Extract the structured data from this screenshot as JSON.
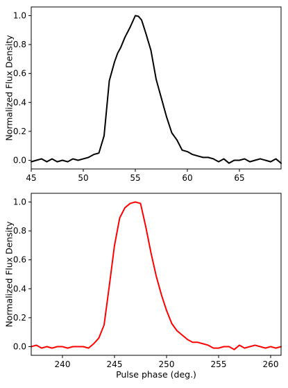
{
  "chart_data": [
    {
      "type": "line",
      "xlabel": "",
      "ylabel": "Normalized Flux Density",
      "xlim": [
        45,
        69
      ],
      "ylim": [
        -0.06,
        1.06
      ],
      "xticks": [
        "45",
        "50",
        "55",
        "60",
        "65"
      ],
      "xtick_values": [
        45,
        50,
        55,
        60,
        65
      ],
      "yticks": [
        "0.0",
        "0.2",
        "0.4",
        "0.6",
        "0.8",
        "1.0"
      ],
      "ytick_values": [
        0.0,
        0.2,
        0.4,
        0.6,
        0.8,
        1.0
      ],
      "grid": false,
      "series": [
        {
          "color": "#000000",
          "x": [
            45.0,
            45.5,
            46.0,
            46.5,
            47.0,
            47.5,
            48.0,
            48.5,
            49.0,
            49.5,
            50.0,
            50.5,
            51.0,
            51.5,
            52.0,
            52.5,
            53.0,
            53.3,
            53.6,
            54.0,
            54.5,
            55.0,
            55.3,
            55.6,
            56.0,
            56.5,
            57.0,
            57.5,
            58.0,
            58.5,
            59.0,
            59.5,
            60.0,
            60.5,
            61.0,
            61.5,
            62.0,
            62.5,
            63.0,
            63.5,
            64.0,
            64.5,
            65.0,
            65.5,
            66.0,
            66.5,
            67.0,
            67.5,
            68.0,
            68.5,
            69.0
          ],
          "y": [
            -0.01,
            0.0,
            0.01,
            -0.01,
            0.01,
            -0.01,
            0.0,
            -0.01,
            0.01,
            0.0,
            0.01,
            0.02,
            0.04,
            0.05,
            0.17,
            0.55,
            0.68,
            0.74,
            0.78,
            0.85,
            0.92,
            1.0,
            0.995,
            0.97,
            0.88,
            0.76,
            0.56,
            0.43,
            0.3,
            0.19,
            0.14,
            0.07,
            0.06,
            0.04,
            0.03,
            0.02,
            0.02,
            0.01,
            -0.01,
            0.01,
            -0.02,
            0.0,
            0.0,
            0.01,
            -0.01,
            0.0,
            0.01,
            0.0,
            -0.01,
            0.01,
            -0.02
          ]
        }
      ]
    },
    {
      "type": "line",
      "xlabel": "Pulse phase (deg.)",
      "ylabel": "Normalized Flux Density",
      "xlim": [
        237,
        261
      ],
      "ylim": [
        -0.06,
        1.06
      ],
      "xticks": [
        "240",
        "245",
        "250",
        "255",
        "260"
      ],
      "xtick_values": [
        240,
        245,
        250,
        255,
        260
      ],
      "yticks": [
        "0.0",
        "0.2",
        "0.4",
        "0.6",
        "0.8",
        "1.0"
      ],
      "ytick_values": [
        0.0,
        0.2,
        0.4,
        0.6,
        0.8,
        1.0
      ],
      "grid": false,
      "series": [
        {
          "color": "#ff0000",
          "x": [
            237.0,
            237.5,
            238.0,
            238.5,
            239.0,
            239.5,
            240.0,
            240.5,
            241.0,
            241.5,
            242.0,
            242.5,
            243.0,
            243.5,
            244.0,
            244.5,
            245.0,
            245.5,
            246.0,
            246.5,
            247.0,
            247.5,
            248.0,
            248.5,
            249.0,
            249.5,
            250.0,
            250.5,
            251.0,
            251.5,
            252.0,
            252.5,
            253.0,
            253.5,
            254.0,
            254.5,
            255.0,
            255.5,
            256.0,
            256.5,
            257.0,
            257.5,
            258.0,
            258.5,
            259.0,
            259.5,
            260.0,
            260.5,
            261.0
          ],
          "y": [
            0.0,
            0.01,
            -0.01,
            0.0,
            -0.01,
            0.0,
            0.0,
            -0.01,
            0.0,
            0.0,
            0.0,
            -0.01,
            0.02,
            0.06,
            0.15,
            0.42,
            0.7,
            0.89,
            0.96,
            0.99,
            1.0,
            0.99,
            0.83,
            0.65,
            0.49,
            0.36,
            0.25,
            0.16,
            0.11,
            0.08,
            0.05,
            0.03,
            0.03,
            0.02,
            0.01,
            -0.01,
            -0.01,
            0.0,
            0.0,
            -0.02,
            0.01,
            -0.01,
            0.0,
            0.01,
            0.0,
            -0.01,
            0.0,
            -0.01,
            0.0
          ]
        }
      ]
    }
  ]
}
